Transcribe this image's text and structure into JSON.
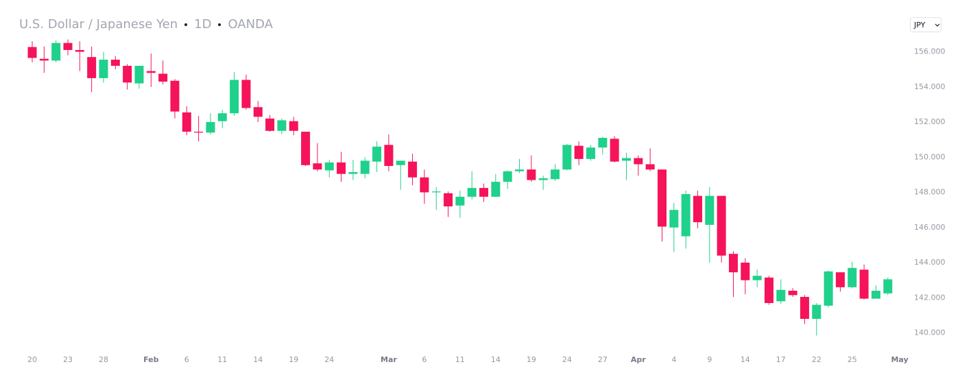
{
  "chart_data": {
    "type": "candlestick",
    "title": "U.S. Dollar / Japanese Yen",
    "interval": "1D",
    "source": "OANDA",
    "categories": [
      "20",
      null,
      null,
      "23",
      null,
      null,
      "28",
      null,
      null,
      null,
      "Feb",
      null,
      null,
      "6",
      null,
      null,
      "11",
      null,
      null,
      "14",
      null,
      null,
      "19",
      null,
      null,
      "24",
      null,
      null,
      null,
      null,
      "Mar",
      null,
      null,
      "6",
      null,
      null,
      "11",
      null,
      null,
      "14",
      null,
      null,
      "19",
      null,
      null,
      "24",
      null,
      null,
      "27",
      null,
      null,
      "Apr",
      null,
      null,
      "4",
      null,
      null,
      "9",
      null,
      null,
      "14",
      null,
      null,
      "17",
      null,
      null,
      "22",
      null,
      null,
      "25",
      null,
      null,
      null,
      "May"
    ],
    "open": [
      156.27,
      155.6,
      155.5,
      156.5,
      156.1,
      155.7,
      154.5,
      155.55,
      155.2,
      154.2,
      154.9,
      154.75,
      154.35,
      152.55,
      151.45,
      151.4,
      152.05,
      152.5,
      154.4,
      152.85,
      152.2,
      151.5,
      152.05,
      151.45,
      149.65,
      149.25,
      149.7,
      149.05,
      149.05,
      149.75,
      150.7,
      149.55,
      149.75,
      148.85,
      148.0,
      147.95,
      147.25,
      147.75,
      148.25,
      147.75,
      148.6,
      149.2,
      149.3,
      148.7,
      148.75,
      149.3,
      150.65,
      149.9,
      150.55,
      151.05,
      149.8,
      149.95,
      149.6,
      149.3,
      146.0,
      145.5,
      147.8,
      146.15,
      147.8,
      144.5,
      144.0,
      143.0,
      143.15,
      141.8,
      142.4,
      142.05,
      140.8,
      141.55,
      143.45,
      142.6,
      143.6,
      141.95,
      142.25,
      null
    ],
    "high": [
      156.6,
      156.3,
      156.65,
      156.7,
      156.6,
      156.3,
      156.0,
      155.75,
      155.3,
      155.2,
      155.9,
      155.5,
      154.45,
      152.9,
      152.35,
      152.5,
      152.7,
      154.85,
      154.7,
      153.2,
      152.4,
      152.2,
      152.3,
      151.45,
      150.8,
      149.85,
      150.3,
      149.85,
      150.0,
      150.9,
      151.3,
      149.8,
      150.2,
      149.3,
      148.3,
      148.05,
      148.1,
      149.2,
      148.5,
      149.05,
      149.25,
      149.9,
      150.1,
      148.95,
      149.6,
      150.75,
      150.9,
      150.7,
      151.15,
      151.2,
      150.25,
      150.1,
      150.5,
      149.3,
      147.4,
      148.1,
      148.1,
      148.3,
      147.8,
      144.65,
      144.25,
      143.6,
      143.25,
      143.05,
      142.55,
      142.15,
      141.7,
      143.55,
      143.45,
      144.05,
      143.9,
      142.7,
      143.15,
      null
    ],
    "low": [
      155.4,
      154.8,
      155.4,
      155.8,
      154.9,
      153.7,
      154.25,
      155.0,
      153.85,
      153.9,
      154.0,
      154.15,
      152.2,
      151.25,
      150.9,
      151.3,
      151.65,
      152.35,
      152.7,
      152.0,
      151.45,
      151.3,
      151.25,
      149.5,
      149.2,
      148.85,
      148.6,
      148.7,
      148.8,
      149.15,
      149.2,
      148.15,
      148.4,
      147.35,
      147.0,
      146.6,
      146.55,
      147.6,
      147.45,
      147.75,
      148.2,
      149.1,
      148.6,
      148.15,
      148.65,
      149.25,
      149.55,
      149.8,
      150.15,
      149.7,
      148.7,
      148.95,
      149.2,
      145.2,
      144.6,
      144.8,
      145.95,
      144.0,
      144.0,
      142.05,
      142.2,
      142.6,
      141.6,
      141.65,
      142.05,
      140.5,
      139.85,
      141.45,
      142.35,
      142.55,
      141.9,
      141.95,
      142.15,
      null
    ],
    "close": [
      155.65,
      155.5,
      156.5,
      156.1,
      156.0,
      154.5,
      155.55,
      155.2,
      154.25,
      155.2,
      154.8,
      154.3,
      152.6,
      151.45,
      151.4,
      152.0,
      152.5,
      154.4,
      152.8,
      152.3,
      151.5,
      152.1,
      151.5,
      149.55,
      149.3,
      149.7,
      149.05,
      149.15,
      149.8,
      150.6,
      149.5,
      149.8,
      148.85,
      148.0,
      148.05,
      147.2,
      147.75,
      148.25,
      147.75,
      148.6,
      149.2,
      149.3,
      148.7,
      148.8,
      149.3,
      150.7,
      149.9,
      150.55,
      151.1,
      149.75,
      149.95,
      149.6,
      149.3,
      146.05,
      147.0,
      147.9,
      146.3,
      147.8,
      144.4,
      143.45,
      143.0,
      143.25,
      141.7,
      142.45,
      142.15,
      140.8,
      141.6,
      143.5,
      142.6,
      143.7,
      141.95,
      142.4,
      143.05,
      null
    ],
    "up_color": "#1fd18b",
    "down_color": "#f5135a",
    "ylim": [
      139.2,
      156.8
    ],
    "yticks": [
      {
        "value": 140,
        "label": "140.000"
      },
      {
        "value": 142,
        "label": "142.000"
      },
      {
        "value": 144,
        "label": "144.000"
      },
      {
        "value": 146,
        "label": "146.000"
      },
      {
        "value": 148,
        "label": "148.000"
      },
      {
        "value": 150,
        "label": "150.000"
      },
      {
        "value": 152,
        "label": "152.000"
      },
      {
        "value": 154,
        "label": "154.000"
      },
      {
        "value": 156,
        "label": "156.000"
      }
    ],
    "grid": false
  },
  "toolbar": {
    "currency": "JPY"
  }
}
